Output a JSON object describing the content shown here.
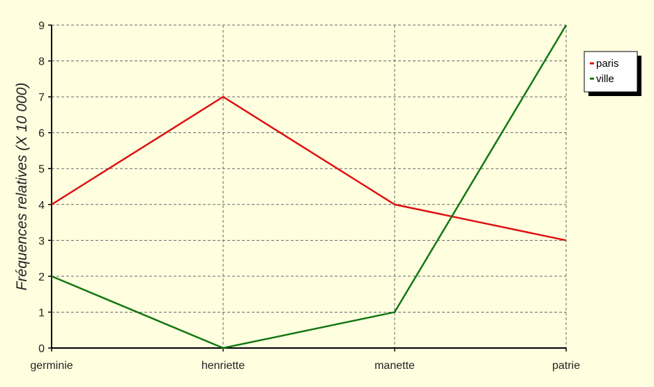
{
  "chart_data": {
    "type": "line",
    "categories": [
      "germinie",
      "henriette",
      "manette",
      "patrie"
    ],
    "ylabel": "Fréquences relatives (X 10 000)",
    "ylim": [
      0,
      9
    ],
    "yticks": [
      0,
      1,
      2,
      3,
      4,
      5,
      6,
      7,
      8,
      9
    ],
    "grid": true,
    "legend_position": "top-right",
    "background_color": "#ffffe0",
    "series": [
      {
        "name": "paris",
        "values": [
          4,
          7,
          4,
          3
        ],
        "color": "#dd1111"
      },
      {
        "name": "ville",
        "values": [
          2,
          0,
          1,
          9
        ],
        "color": "#117711"
      }
    ]
  }
}
